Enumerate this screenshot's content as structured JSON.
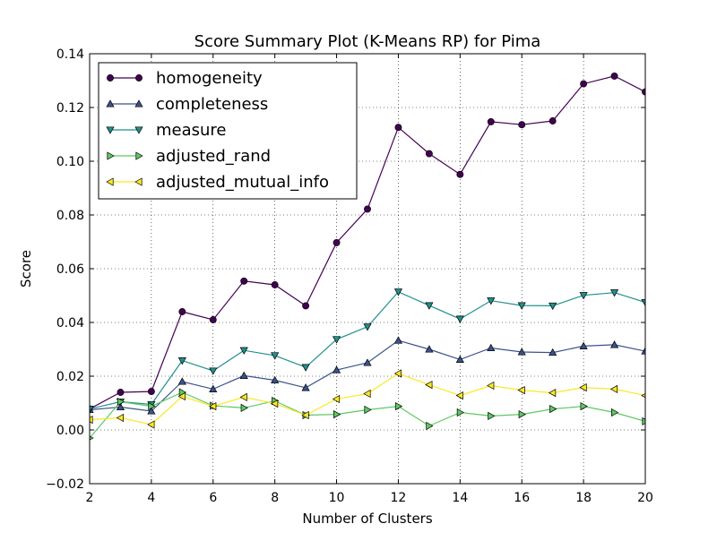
{
  "chart_data": {
    "type": "line",
    "title": "Score Summary Plot (K-Means RP) for Pima",
    "xlabel": "Number of Clusters",
    "ylabel": "Score",
    "xlim": [
      2,
      20
    ],
    "ylim": [
      -0.02,
      0.14
    ],
    "x_ticks": [
      "2",
      "4",
      "6",
      "8",
      "10",
      "12",
      "14",
      "16",
      "18",
      "20"
    ],
    "y_ticks": [
      "−0.02",
      "0.00",
      "0.02",
      "0.04",
      "0.06",
      "0.08",
      "0.10",
      "0.12",
      "0.14"
    ],
    "grid": true,
    "legend_position": "upper-left",
    "x": [
      2,
      3,
      4,
      5,
      6,
      7,
      8,
      9,
      10,
      11,
      12,
      13,
      14,
      15,
      16,
      17,
      18,
      19,
      20
    ],
    "series": [
      {
        "name": "homogeneity",
        "color": "#440154",
        "marker": "circle",
        "values": [
          0.0078,
          0.014,
          0.0143,
          0.044,
          0.041,
          0.0554,
          0.054,
          0.0462,
          0.0697,
          0.0822,
          0.1126,
          0.1028,
          0.0951,
          0.1147,
          0.1136,
          0.115,
          0.1288,
          0.1317,
          0.1258
        ]
      },
      {
        "name": "completeness",
        "color": "#3b528b",
        "marker": "triangle-up",
        "values": [
          0.0075,
          0.0085,
          0.007,
          0.018,
          0.0152,
          0.0202,
          0.0185,
          0.0157,
          0.0223,
          0.025,
          0.0333,
          0.03,
          0.0262,
          0.0305,
          0.029,
          0.0288,
          0.0312,
          0.0317,
          0.0293
        ]
      },
      {
        "name": "measure",
        "color": "#21918c",
        "marker": "triangle-down",
        "values": [
          0.0078,
          0.0105,
          0.0095,
          0.0258,
          0.022,
          0.0296,
          0.0277,
          0.0233,
          0.0337,
          0.0384,
          0.0514,
          0.0463,
          0.0413,
          0.0481,
          0.0463,
          0.0462,
          0.0501,
          0.0511,
          0.0475
        ]
      },
      {
        "name": "adjusted_rand",
        "color": "#5ec962",
        "marker": "triangle-right",
        "values": [
          -0.003,
          0.0105,
          0.0088,
          0.014,
          0.009,
          0.0082,
          0.0108,
          0.0055,
          0.0058,
          0.0075,
          0.0088,
          0.0015,
          0.0065,
          0.0052,
          0.0058,
          0.0078,
          0.0088,
          0.0065,
          0.0032
        ]
      },
      {
        "name": "adjusted_mutual_info",
        "color": "#fde725",
        "marker": "triangle-left",
        "values": [
          0.0038,
          0.0045,
          0.002,
          0.0125,
          0.0088,
          0.0122,
          0.0098,
          0.0055,
          0.0115,
          0.0135,
          0.021,
          0.0168,
          0.0128,
          0.0165,
          0.0148,
          0.0138,
          0.0158,
          0.0152,
          0.0128
        ]
      }
    ]
  }
}
